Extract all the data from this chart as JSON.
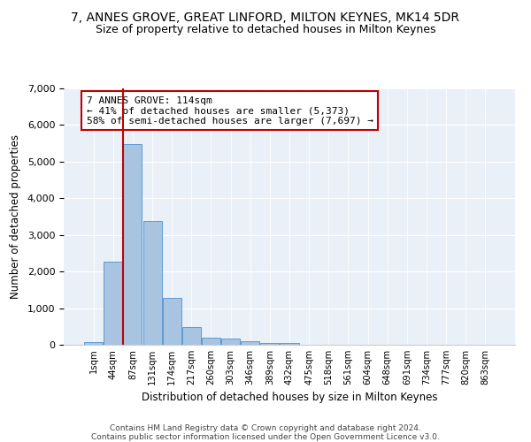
{
  "title1": "7, ANNES GROVE, GREAT LINFORD, MILTON KEYNES, MK14 5DR",
  "title2": "Size of property relative to detached houses in Milton Keynes",
  "xlabel": "Distribution of detached houses by size in Milton Keynes",
  "ylabel": "Number of detached properties",
  "footnote": "Contains HM Land Registry data © Crown copyright and database right 2024.\nContains public sector information licensed under the Open Government Licence v3.0.",
  "bin_labels": [
    "1sqm",
    "44sqm",
    "87sqm",
    "131sqm",
    "174sqm",
    "217sqm",
    "260sqm",
    "303sqm",
    "346sqm",
    "389sqm",
    "432sqm",
    "475sqm",
    "518sqm",
    "561sqm",
    "604sqm",
    "648sqm",
    "691sqm",
    "734sqm",
    "777sqm",
    "820sqm",
    "863sqm"
  ],
  "bar_values": [
    70,
    2270,
    5480,
    3380,
    1290,
    490,
    200,
    165,
    95,
    60,
    45,
    0,
    0,
    0,
    0,
    0,
    0,
    0,
    0,
    0,
    0
  ],
  "bar_color": "#a8c4e0",
  "bar_edge_color": "#5b9bd5",
  "highlight_color": "#c00000",
  "highlight_bin_index": 2,
  "annotation_text": "7 ANNES GROVE: 114sqm\n← 41% of detached houses are smaller (5,373)\n58% of semi-detached houses are larger (7,697) →",
  "ylim": [
    0,
    7000
  ],
  "yticks": [
    0,
    1000,
    2000,
    3000,
    4000,
    5000,
    6000,
    7000
  ],
  "bg_color": "#eaf0f8",
  "title1_fontsize": 10,
  "title2_fontsize": 9,
  "figsize": [
    6.0,
    5.0
  ]
}
